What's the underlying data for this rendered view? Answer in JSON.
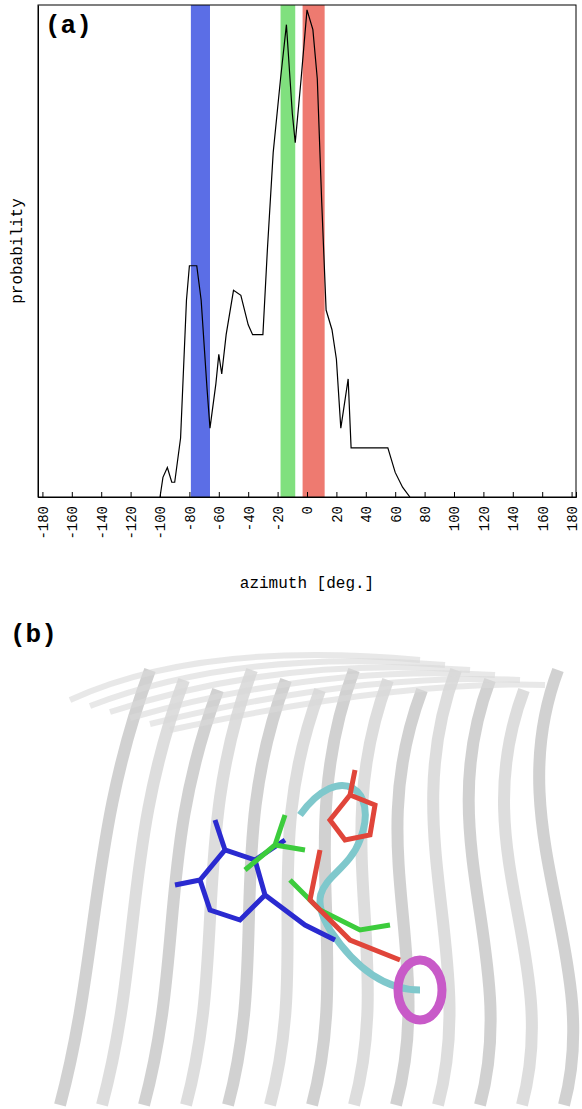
{
  "chart_data": {
    "type": "line",
    "panel": "(a)",
    "x_label": "azimuth [deg.]",
    "y_label": "probability",
    "x": [
      -100,
      -98,
      -95,
      -92,
      -90,
      -86,
      -82,
      -80,
      -75,
      -72,
      -68,
      -66,
      -62,
      -60,
      -58,
      -55,
      -50,
      -45,
      -40,
      -37,
      -33,
      -30,
      -27,
      -23,
      -18,
      -14,
      -10,
      -8,
      -4,
      0,
      4,
      7,
      10,
      13,
      17,
      20,
      23,
      26,
      28,
      30,
      35,
      45,
      55,
      60,
      65,
      70
    ],
    "values": [
      0,
      0.04,
      0.06,
      0.03,
      0.03,
      0.12,
      0.4,
      0.47,
      0.47,
      0.4,
      0.22,
      0.14,
      0.23,
      0.29,
      0.25,
      0.33,
      0.42,
      0.41,
      0.35,
      0.33,
      0.33,
      0.33,
      0.5,
      0.7,
      0.85,
      0.96,
      0.78,
      0.72,
      0.85,
      0.99,
      0.95,
      0.85,
      0.6,
      0.38,
      0.34,
      0.28,
      0.14,
      0.2,
      0.24,
      0.1,
      0.1,
      0.1,
      0.1,
      0.05,
      0.02,
      0
    ],
    "color": "#000000",
    "bands": [
      {
        "range": [
          -79,
          -66
        ],
        "color": "#5b6ee6"
      },
      {
        "range": [
          -18,
          -8
        ],
        "color": "#80e07e"
      },
      {
        "range": [
          -3,
          12
        ],
        "color": "#ee7a70"
      }
    ],
    "xlim": [
      -183,
      183
    ],
    "xticks": [
      -180,
      -160,
      -140,
      -120,
      -100,
      -80,
      -60,
      -40,
      -20,
      0,
      20,
      40,
      60,
      80,
      100,
      120,
      140,
      160,
      180
    ],
    "ylim": [
      0,
      1
    ],
    "yticks": [],
    "tick_labels": "x",
    "grid": false
  },
  "image_panel": {
    "label": "(b)"
  }
}
